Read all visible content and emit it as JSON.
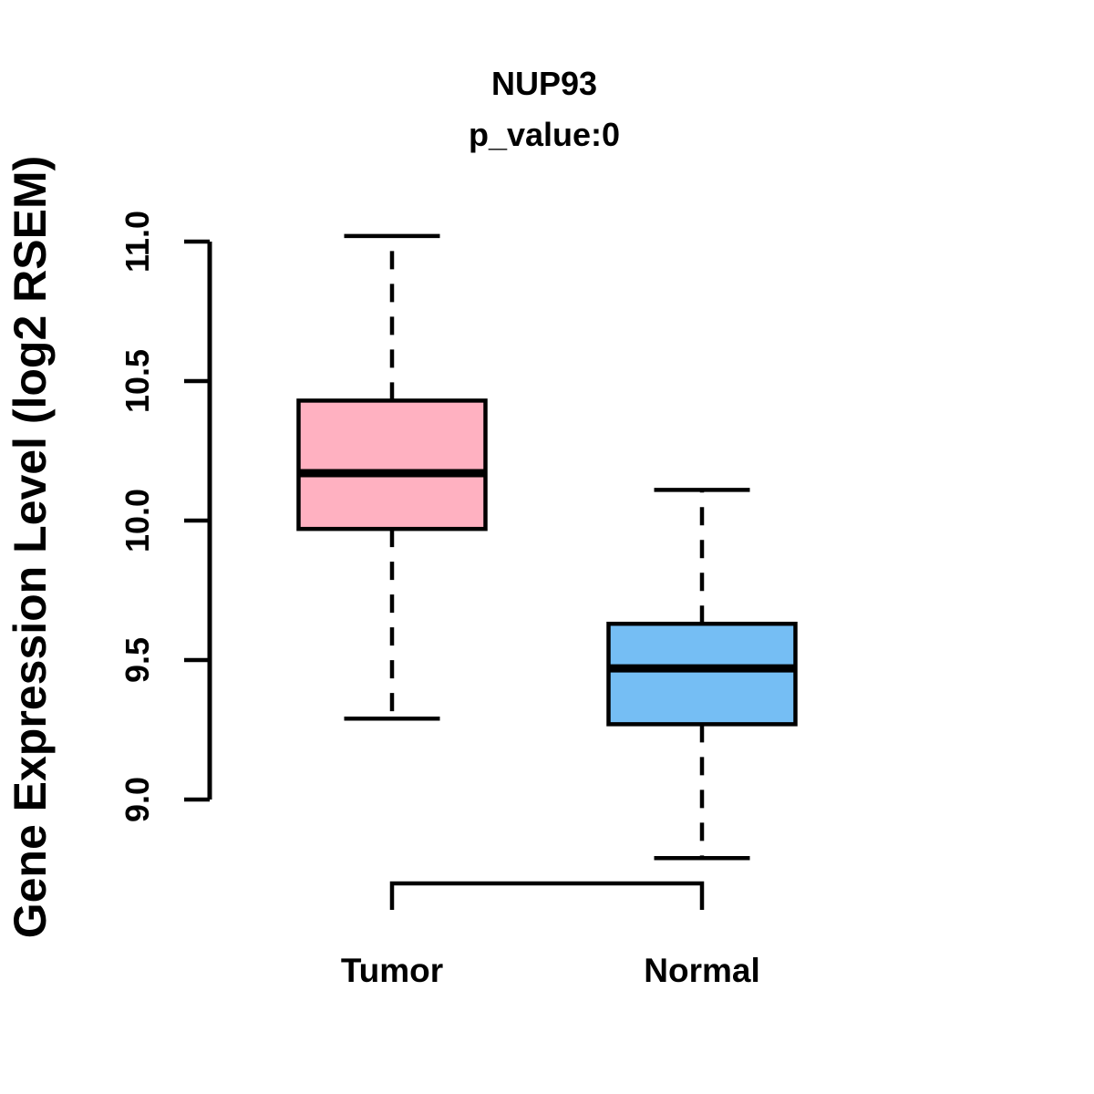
{
  "figure": {
    "background": "#ffffff",
    "text_color": "#000000"
  },
  "chart_data": {
    "type": "boxplot",
    "title": "NUP93",
    "subtitle": "p_value:0",
    "ylabel": "Gene Expression Level (log2 RSEM)",
    "xlabel": "",
    "ylim": [
      9.0,
      11.0
    ],
    "yticks": [
      "9.0",
      "9.5",
      "10.0",
      "10.5",
      "11.0"
    ],
    "grid": false,
    "legend": "none",
    "categories": [
      "Tumor",
      "Normal"
    ],
    "series": [
      {
        "name": "Tumor",
        "fill_color": "#FFB1C1",
        "whisker_low": 9.29,
        "q1": 9.97,
        "median": 10.17,
        "q3": 10.43,
        "whisker_high": 11.02
      },
      {
        "name": "Normal",
        "fill_color": "#75BEF4",
        "whisker_low": 8.79,
        "q1": 9.27,
        "median": 9.47,
        "q3": 9.63,
        "whisker_high": 10.11
      }
    ],
    "style": {
      "box_border_color": "#000000",
      "median_color": "#000000",
      "axis_color": "#000000",
      "whisker_style": "dashed"
    }
  }
}
